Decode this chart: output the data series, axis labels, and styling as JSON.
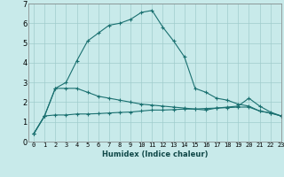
{
  "xlabel": "Humidex (Indice chaleur)",
  "bg_color": "#c8eaea",
  "grid_color": "#a0cccc",
  "line_color": "#1a7070",
  "x": [
    0,
    1,
    2,
    3,
    4,
    5,
    6,
    7,
    8,
    9,
    10,
    11,
    12,
    13,
    14,
    15,
    16,
    17,
    18,
    19,
    20,
    21,
    22,
    23
  ],
  "line1": [
    0.4,
    1.3,
    2.7,
    3.0,
    4.1,
    5.1,
    5.5,
    5.9,
    6.0,
    6.2,
    6.55,
    6.65,
    5.8,
    5.1,
    4.3,
    2.7,
    2.5,
    2.2,
    2.1,
    1.9,
    1.8,
    1.55,
    1.45,
    1.3
  ],
  "line2": [
    0.4,
    1.3,
    2.7,
    2.7,
    2.7,
    2.5,
    2.3,
    2.2,
    2.1,
    2.0,
    1.9,
    1.85,
    1.8,
    1.75,
    1.7,
    1.65,
    1.6,
    1.7,
    1.75,
    1.8,
    2.2,
    1.8,
    1.5,
    1.3
  ],
  "line3": [
    0.4,
    1.3,
    1.35,
    1.35,
    1.4,
    1.4,
    1.42,
    1.45,
    1.48,
    1.5,
    1.55,
    1.6,
    1.6,
    1.62,
    1.65,
    1.65,
    1.68,
    1.7,
    1.72,
    1.75,
    1.75,
    1.55,
    1.45,
    1.3
  ],
  "ylim": [
    0,
    7
  ],
  "xlim": [
    -0.5,
    23
  ],
  "yticks": [
    0,
    1,
    2,
    3,
    4,
    5,
    6,
    7
  ],
  "xticks": [
    0,
    1,
    2,
    3,
    4,
    5,
    6,
    7,
    8,
    9,
    10,
    11,
    12,
    13,
    14,
    15,
    16,
    17,
    18,
    19,
    20,
    21,
    22,
    23
  ],
  "tick_fontsize": 5,
  "xlabel_fontsize": 6
}
